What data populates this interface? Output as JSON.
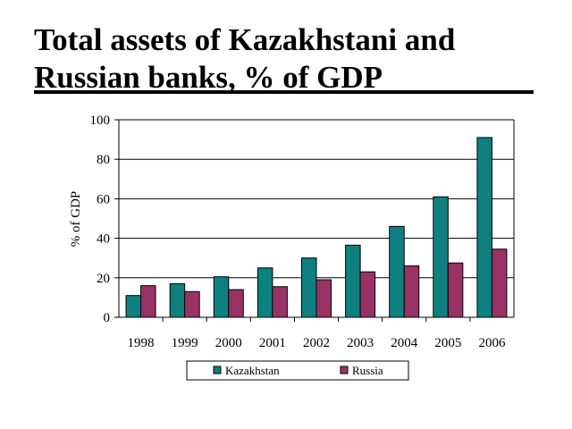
{
  "slide": {
    "title_line1": "Total assets of Kazakhstani and",
    "title_line2": "Russian banks, % of GDP"
  },
  "colors": {
    "kazakhstan": "#0f8080",
    "russia": "#993366",
    "grid": "#000000"
  },
  "chart_data": {
    "type": "bar",
    "title": "",
    "xlabel": "",
    "ylabel": "% of GDP",
    "ylim": [
      0,
      100
    ],
    "yticks": [
      0,
      20,
      40,
      60,
      80,
      100
    ],
    "grid": "horizontal",
    "legend_placement": "bottom",
    "categories": [
      "1998",
      "1999",
      "2000",
      "2001",
      "2002",
      "2003",
      "2004",
      "2005",
      "2006"
    ],
    "series": [
      {
        "name": "Kazakhstan",
        "values": [
          11,
          17,
          20.5,
          25,
          30,
          36.5,
          46,
          61,
          91
        ]
      },
      {
        "name": "Russia",
        "values": [
          16,
          13,
          14,
          15.5,
          19,
          23,
          26,
          27.5,
          34.5
        ]
      }
    ]
  }
}
